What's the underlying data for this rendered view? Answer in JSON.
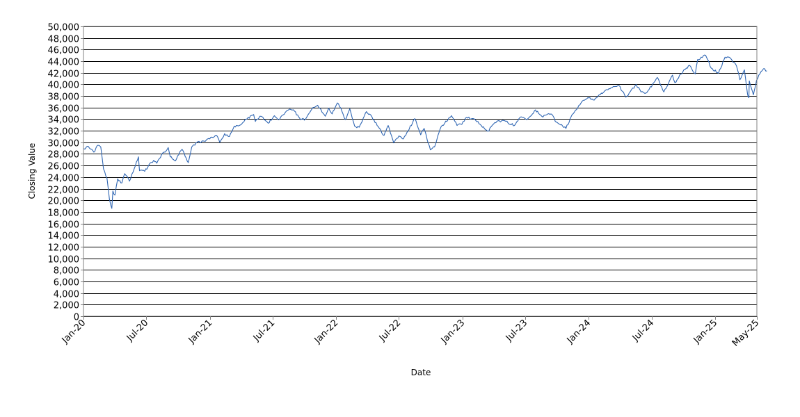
{
  "chart_data": {
    "type": "line",
    "title": "",
    "xlabel": "Date",
    "ylabel": "Closing Value",
    "ylim": [
      0,
      50000
    ],
    "yticks": [
      0,
      2000,
      4000,
      6000,
      8000,
      10000,
      12000,
      14000,
      16000,
      18000,
      20000,
      22000,
      24000,
      26000,
      28000,
      30000,
      32000,
      34000,
      36000,
      38000,
      40000,
      42000,
      44000,
      46000,
      48000,
      50000
    ],
    "ytick_labels": [
      "0",
      "2,000",
      "4,000",
      "6,000",
      "8,000",
      "10,000",
      "12,000",
      "14,000",
      "16,000",
      "18,000",
      "20,000",
      "22,000",
      "24,000",
      "26,000",
      "28,000",
      "30,000",
      "32,000",
      "34,000",
      "36,000",
      "38,000",
      "40,000",
      "42,000",
      "44,000",
      "46,000",
      "48,000",
      "50,000"
    ],
    "xlim": [
      "2020-01-01",
      "2025-05-01"
    ],
    "xticks": [
      {
        "date": "2020-01-01",
        "label": "Jan-20"
      },
      {
        "date": "2020-07-01",
        "label": "Jul-20"
      },
      {
        "date": "2021-01-01",
        "label": "Jan-21"
      },
      {
        "date": "2021-07-01",
        "label": "Jul-21"
      },
      {
        "date": "2022-01-01",
        "label": "Jan-22"
      },
      {
        "date": "2022-07-01",
        "label": "Jul-22"
      },
      {
        "date": "2023-01-01",
        "label": "Jan-23"
      },
      {
        "date": "2023-07-01",
        "label": "Jul-23"
      },
      {
        "date": "2024-01-01",
        "label": "Jan-24"
      },
      {
        "date": "2024-07-01",
        "label": "Jul-24"
      },
      {
        "date": "2025-01-01",
        "label": "Jan-25"
      },
      {
        "date": "2025-05-01",
        "label": "May-25"
      }
    ],
    "grid": "horizontal",
    "legend": "none",
    "series": [
      {
        "color": "#2f66b3",
        "points": [
          [
            "2020-01-02",
            28900
          ],
          [
            "2020-01-15",
            29300
          ],
          [
            "2020-01-31",
            28300
          ],
          [
            "2020-02-12",
            29500
          ],
          [
            "2020-02-20",
            29200
          ],
          [
            "2020-02-28",
            25400
          ],
          [
            "2020-03-09",
            23800
          ],
          [
            "2020-03-16",
            20200
          ],
          [
            "2020-03-23",
            18600
          ],
          [
            "2020-03-26",
            21600
          ],
          [
            "2020-04-01",
            20900
          ],
          [
            "2020-04-09",
            23700
          ],
          [
            "2020-04-21",
            23000
          ],
          [
            "2020-04-29",
            24600
          ],
          [
            "2020-05-13",
            23300
          ],
          [
            "2020-05-27",
            25500
          ],
          [
            "2020-06-08",
            27500
          ],
          [
            "2020-06-11",
            25100
          ],
          [
            "2020-06-26",
            25000
          ],
          [
            "2020-07-08",
            26100
          ],
          [
            "2020-07-22",
            26900
          ],
          [
            "2020-07-31",
            26400
          ],
          [
            "2020-08-14",
            27900
          ],
          [
            "2020-08-28",
            28600
          ],
          [
            "2020-09-02",
            29100
          ],
          [
            "2020-09-08",
            27500
          ],
          [
            "2020-09-23",
            26800
          ],
          [
            "2020-10-09",
            28600
          ],
          [
            "2020-10-12",
            28800
          ],
          [
            "2020-10-30",
            26500
          ],
          [
            "2020-11-09",
            29200
          ],
          [
            "2020-11-24",
            30000
          ],
          [
            "2020-12-15",
            30200
          ],
          [
            "2020-12-31",
            30600
          ],
          [
            "2021-01-20",
            31200
          ],
          [
            "2021-01-29",
            30000
          ],
          [
            "2021-02-12",
            31500
          ],
          [
            "2021-02-26",
            31000
          ],
          [
            "2021-03-12",
            32800
          ],
          [
            "2021-03-30",
            33000
          ],
          [
            "2021-04-15",
            34000
          ],
          [
            "2021-05-07",
            34800
          ],
          [
            "2021-05-12",
            33600
          ],
          [
            "2021-05-28",
            34500
          ],
          [
            "2021-06-18",
            33300
          ],
          [
            "2021-07-06",
            34600
          ],
          [
            "2021-07-19",
            33900
          ],
          [
            "2021-08-16",
            35600
          ],
          [
            "2021-09-02",
            35400
          ],
          [
            "2021-09-20",
            33900
          ],
          [
            "2021-10-04",
            34000
          ],
          [
            "2021-10-22",
            35700
          ],
          [
            "2021-11-08",
            36400
          ],
          [
            "2021-11-30",
            34500
          ],
          [
            "2021-12-10",
            35900
          ],
          [
            "2021-12-20",
            34900
          ],
          [
            "2022-01-04",
            36800
          ],
          [
            "2022-01-14",
            35900
          ],
          [
            "2022-01-27",
            33900
          ],
          [
            "2022-02-09",
            35800
          ],
          [
            "2022-02-23",
            32800
          ],
          [
            "2022-03-08",
            32600
          ],
          [
            "2022-03-29",
            35300
          ],
          [
            "2022-04-14",
            34400
          ],
          [
            "2022-04-29",
            32900
          ],
          [
            "2022-05-19",
            31200
          ],
          [
            "2022-05-31",
            32900
          ],
          [
            "2022-06-16",
            29900
          ],
          [
            "2022-07-01",
            31100
          ],
          [
            "2022-07-14",
            30600
          ],
          [
            "2022-08-16",
            34100
          ],
          [
            "2022-09-02",
            31300
          ],
          [
            "2022-09-12",
            32400
          ],
          [
            "2022-09-30",
            28700
          ],
          [
            "2022-10-12",
            29200
          ],
          [
            "2022-10-31",
            32700
          ],
          [
            "2022-11-30",
            34600
          ],
          [
            "2022-12-16",
            32900
          ],
          [
            "2022-12-30",
            33100
          ],
          [
            "2023-01-13",
            34300
          ],
          [
            "2023-02-01",
            34100
          ],
          [
            "2023-02-21",
            33100
          ],
          [
            "2023-03-15",
            31900
          ],
          [
            "2023-04-04",
            33400
          ],
          [
            "2023-04-27",
            33800
          ],
          [
            "2023-05-31",
            32900
          ],
          [
            "2023-06-16",
            34300
          ],
          [
            "2023-07-06",
            33900
          ],
          [
            "2023-07-31",
            35600
          ],
          [
            "2023-08-18",
            34500
          ],
          [
            "2023-09-14",
            34900
          ],
          [
            "2023-09-29",
            33500
          ],
          [
            "2023-10-27",
            32400
          ],
          [
            "2023-11-14",
            34800
          ],
          [
            "2023-12-13",
            37100
          ],
          [
            "2023-12-29",
            37700
          ],
          [
            "2024-01-17",
            37300
          ],
          [
            "2024-01-31",
            38200
          ],
          [
            "2024-02-22",
            39100
          ],
          [
            "2024-03-28",
            39800
          ],
          [
            "2024-04-17",
            37800
          ],
          [
            "2024-05-17",
            40000
          ],
          [
            "2024-05-31",
            38700
          ],
          [
            "2024-06-17",
            38600
          ],
          [
            "2024-07-17",
            41200
          ],
          [
            "2024-08-05",
            38700
          ],
          [
            "2024-08-30",
            41600
          ],
          [
            "2024-09-06",
            40300
          ],
          [
            "2024-09-30",
            42300
          ],
          [
            "2024-10-18",
            43300
          ],
          [
            "2024-11-04",
            41800
          ],
          [
            "2024-11-11",
            44300
          ],
          [
            "2024-12-04",
            45000
          ],
          [
            "2024-12-20",
            42800
          ],
          [
            "2025-01-10",
            41900
          ],
          [
            "2025-01-29",
            44700
          ],
          [
            "2025-02-14",
            44500
          ],
          [
            "2025-03-03",
            43200
          ],
          [
            "2025-03-13",
            40800
          ],
          [
            "2025-03-26",
            42500
          ],
          [
            "2025-04-04",
            38300
          ],
          [
            "2025-04-08",
            37700
          ],
          [
            "2025-04-09",
            40600
          ],
          [
            "2025-04-21",
            38200
          ],
          [
            "2025-04-30",
            40700
          ],
          [
            "2025-05-13",
            42200
          ],
          [
            "2025-05-20",
            42700
          ],
          [
            "2025-05-30",
            42300
          ]
        ]
      }
    ]
  }
}
